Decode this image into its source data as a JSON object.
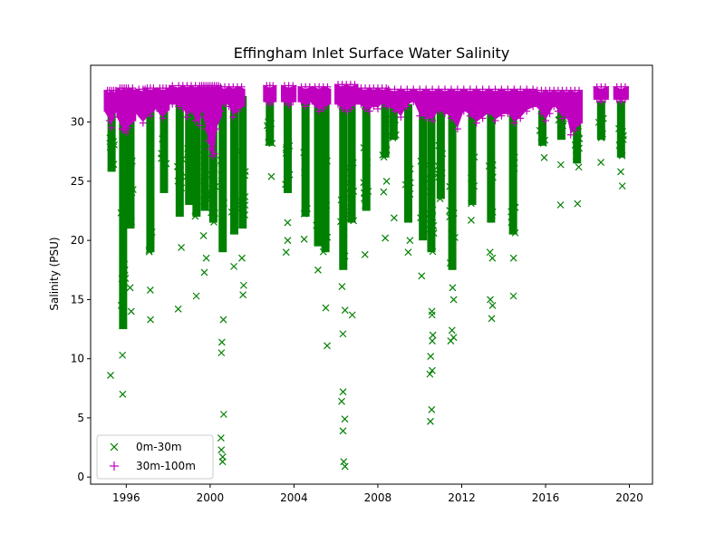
{
  "chart_data": {
    "type": "scatter",
    "title": "Effingham Inlet Surface Water Salinity",
    "xlabel": "",
    "ylabel": "Salinity (PSU)",
    "xlim": [
      1994.3,
      2021.1
    ],
    "ylim": [
      -0.6,
      34.8
    ],
    "x_ticks": [
      1996,
      2000,
      2004,
      2008,
      2012,
      2016,
      2020
    ],
    "x_tick_labels": [
      "1996",
      "2000",
      "2004",
      "2008",
      "2012",
      "2016",
      "2020"
    ],
    "y_ticks": [
      0,
      5,
      10,
      15,
      20,
      25,
      30
    ],
    "y_tick_labels": [
      "0",
      "5",
      "10",
      "15",
      "20",
      "25",
      "30"
    ],
    "grid": false,
    "legend_position": "lower-left",
    "series": [
      {
        "name": "0m-30m",
        "marker": "x",
        "color": "#008000",
        "cruises": [
          {
            "x": 1995.3,
            "top": 31.8,
            "bottom": 25.8,
            "outliers": [
              8.6
            ]
          },
          {
            "x": 1995.85,
            "top": 31.9,
            "bottom": 12.5,
            "outliers": [
              10.3,
              7.0
            ]
          },
          {
            "x": 1996.2,
            "top": 31.9,
            "bottom": 21.0,
            "outliers": [
              16.0,
              14.0
            ]
          },
          {
            "x": 1997.15,
            "top": 32.0,
            "bottom": 19.0,
            "outliers": [
              15.8,
              13.3
            ]
          },
          {
            "x": 1997.8,
            "top": 32.0,
            "bottom": 24.0,
            "outliers": []
          },
          {
            "x": 1998.55,
            "top": 32.2,
            "bottom": 22.0,
            "outliers": [
              19.4,
              14.2
            ]
          },
          {
            "x": 1999.0,
            "top": 32.2,
            "bottom": 23.0,
            "outliers": []
          },
          {
            "x": 1999.35,
            "top": 32.3,
            "bottom": 22.0,
            "outliers": [
              15.3
            ]
          },
          {
            "x": 1999.75,
            "top": 32.3,
            "bottom": 22.5,
            "outliers": [
              20.4,
              18.5,
              17.3
            ]
          },
          {
            "x": 2000.15,
            "top": 32.3,
            "bottom": 21.5,
            "outliers": []
          },
          {
            "x": 2000.6,
            "top": 32.2,
            "bottom": 19.0,
            "outliers": [
              13.3,
              11.4,
              10.5,
              5.3,
              3.3,
              2.3,
              1.7,
              1.3
            ]
          },
          {
            "x": 2001.15,
            "top": 32.2,
            "bottom": 20.5,
            "outliers": [
              17.8
            ]
          },
          {
            "x": 2001.55,
            "top": 32.2,
            "bottom": 21.0,
            "outliers": [
              18.5,
              16.2,
              15.4
            ]
          },
          {
            "x": 2002.85,
            "top": 31.8,
            "bottom": 28.0,
            "outliers": [
              25.4
            ]
          },
          {
            "x": 2003.7,
            "top": 32.0,
            "bottom": 24.0,
            "outliers": [
              21.5,
              20.0,
              19.0
            ]
          },
          {
            "x": 2004.55,
            "top": 32.0,
            "bottom": 22.0,
            "outliers": [
              20.1
            ]
          },
          {
            "x": 2005.15,
            "top": 32.1,
            "bottom": 19.5,
            "outliers": [
              17.5
            ]
          },
          {
            "x": 2005.5,
            "top": 32.1,
            "bottom": 19.0,
            "outliers": [
              14.3,
              11.1
            ]
          },
          {
            "x": 2006.35,
            "top": 32.2,
            "bottom": 17.5,
            "outliers": [
              16.1,
              14.1,
              12.1,
              7.2,
              6.4,
              4.9,
              3.9,
              1.3,
              0.9
            ]
          },
          {
            "x": 2006.75,
            "top": 32.2,
            "bottom": 21.5,
            "outliers": [
              13.7
            ]
          },
          {
            "x": 2007.45,
            "top": 32.2,
            "bottom": 22.5,
            "outliers": [
              18.8
            ]
          },
          {
            "x": 2008.35,
            "top": 31.8,
            "bottom": 27.0,
            "outliers": [
              25.0,
              24.1,
              20.2
            ]
          },
          {
            "x": 2008.75,
            "top": 31.5,
            "bottom": 28.5,
            "outliers": [
              21.9
            ]
          },
          {
            "x": 2009.45,
            "top": 31.5,
            "bottom": 21.5,
            "outliers": [
              20.0,
              19.0
            ]
          },
          {
            "x": 2010.15,
            "top": 31.6,
            "bottom": 20.0,
            "outliers": [
              17.0
            ]
          },
          {
            "x": 2010.55,
            "top": 31.5,
            "bottom": 19.0,
            "outliers": [
              14.0,
              13.7,
              12.0,
              11.5,
              10.2,
              9.0,
              8.7,
              5.7,
              4.7
            ]
          },
          {
            "x": 2011.0,
            "top": 31.5,
            "bottom": 23.5,
            "outliers": []
          },
          {
            "x": 2011.55,
            "top": 31.5,
            "bottom": 17.5,
            "outliers": [
              16.0,
              15.0,
              12.4,
              11.8,
              11.5
            ]
          },
          {
            "x": 2012.5,
            "top": 31.5,
            "bottom": 23.0,
            "outliers": [
              21.7
            ]
          },
          {
            "x": 2013.4,
            "top": 31.6,
            "bottom": 21.5,
            "outliers": [
              19.0,
              18.5,
              15.0,
              14.5,
              13.4
            ]
          },
          {
            "x": 2014.45,
            "top": 31.4,
            "bottom": 20.5,
            "outliers": [
              18.5,
              15.3
            ]
          },
          {
            "x": 2015.85,
            "top": 31.0,
            "bottom": 28.0,
            "outliers": [
              27.0
            ]
          },
          {
            "x": 2016.75,
            "top": 31.5,
            "bottom": 28.5,
            "outliers": [
              26.4,
              23.0
            ]
          },
          {
            "x": 2017.5,
            "top": 31.5,
            "bottom": 26.5,
            "outliers": [
              26.2,
              23.1
            ]
          },
          {
            "x": 2018.65,
            "top": 31.8,
            "bottom": 28.5,
            "outliers": [
              26.6
            ]
          },
          {
            "x": 2019.6,
            "top": 31.8,
            "bottom": 27.0,
            "outliers": [
              25.8,
              24.6
            ]
          }
        ]
      },
      {
        "name": "30m-100m",
        "marker": "+",
        "color": "#bf00bf",
        "segments": [
          {
            "x": [
              1995.1,
              1995.2,
              1995.3,
              1995.4,
              1995.5
            ],
            "top": 32.6,
            "bottom": [
              31.0,
              30.2,
              29.6,
              30.5,
              31.2
            ]
          },
          {
            "x": [
              1995.7,
              1995.8,
              1995.9,
              1996.0,
              1996.1,
              1996.3
            ],
            "top": 32.8,
            "bottom": [
              30.5,
              29.5,
              29.4,
              29.2,
              29.6,
              30.2
            ]
          },
          {
            "x": [
              1996.6,
              1996.8,
              1996.9
            ],
            "top": 32.7,
            "bottom": [
              30.8,
              30.0,
              30.6
            ]
          },
          {
            "x": [
              1997.0,
              1997.15,
              1997.3
            ],
            "top": 32.8,
            "bottom": [
              31.0,
              30.6,
              31.2
            ]
          },
          {
            "x": [
              1997.6,
              1997.75,
              1997.9
            ],
            "top": 32.8,
            "bottom": [
              31.0,
              30.4,
              31.1
            ]
          },
          {
            "x": [
              1998.2,
              1998.5,
              1998.7,
              1998.9,
              1999.1,
              1999.3,
              1999.5,
              1999.6,
              1999.7,
              1999.8,
              1999.9,
              2000.0,
              2000.1,
              2000.2,
              2000.3,
              2000.4
            ],
            "top": 33.0,
            "bottom": [
              31.6,
              31.4,
              31.2,
              30.5,
              31.0,
              30.2,
              29.8,
              31.2,
              30.5,
              29.5,
              28.5,
              27.8,
              27.2,
              27.4,
              29.5,
              30.5
            ]
          },
          {
            "x": [
              2000.5,
              2000.7,
              2000.9,
              2001.1,
              2001.3,
              2001.5
            ],
            "top": 32.9,
            "bottom": [
              31.0,
              31.6,
              31.4,
              30.5,
              31.0,
              31.4
            ]
          },
          {
            "x": [
              2002.7,
              2002.85,
              2003.0
            ],
            "top": 33.0,
            "bottom": [
              31.8,
              31.6,
              31.8
            ]
          },
          {
            "x": [
              2003.55,
              2003.75,
              2003.95
            ],
            "top": 33.0,
            "bottom": [
              31.8,
              31.5,
              31.8
            ]
          },
          {
            "x": [
              2004.35,
              2004.55,
              2004.75
            ],
            "top": 32.9,
            "bottom": [
              31.8,
              31.4,
              31.8
            ]
          },
          {
            "x": [
              2005.0,
              2005.2,
              2005.4,
              2005.6
            ],
            "top": 32.9,
            "bottom": [
              31.6,
              31.0,
              31.2,
              31.6
            ]
          },
          {
            "x": [
              2006.1,
              2006.3,
              2006.5,
              2006.7,
              2006.9
            ],
            "top": 33.1,
            "bottom": [
              31.6,
              31.2,
              31.0,
              31.2,
              31.6
            ]
          },
          {
            "x": [
              2007.2,
              2007.4,
              2007.6,
              2007.8,
              2008.0,
              2008.2,
              2008.4
            ],
            "top": 32.8,
            "bottom": [
              31.6,
              31.2,
              31.0,
              31.4,
              31.2,
              31.6,
              31.4
            ]
          },
          {
            "x": [
              2008.5,
              2008.8,
              2009.1,
              2009.4,
              2009.7,
              2010.0,
              2010.3,
              2010.6,
              2010.9,
              2011.2,
              2011.5,
              2011.8,
              2012.1,
              2012.4,
              2012.7,
              2013.0,
              2013.3,
              2013.6,
              2013.9,
              2014.2,
              2014.5,
              2014.8,
              2015.1,
              2015.4
            ],
            "top": 32.7,
            "bottom": [
              31.5,
              31.0,
              30.5,
              31.4,
              31.8,
              30.6,
              30.4,
              30.2,
              31.0,
              30.8,
              30.4,
              29.5,
              31.0,
              30.6,
              30.0,
              30.4,
              30.8,
              30.2,
              30.6,
              30.8,
              30.0,
              30.4,
              31.0,
              31.4
            ]
          },
          {
            "x": [
              2015.6,
              2015.8,
              2016.0,
              2016.2,
              2016.4,
              2016.6,
              2016.8,
              2017.0,
              2017.2,
              2017.4,
              2017.6
            ],
            "top": 32.6,
            "bottom": [
              31.6,
              30.8,
              30.2,
              30.8,
              31.4,
              31.0,
              30.4,
              30.6,
              29.0,
              29.4,
              30.0
            ]
          },
          {
            "x": [
              2018.45,
              2018.65,
              2018.85
            ],
            "top": 32.9,
            "bottom": [
              32.0,
              31.8,
              32.0
            ]
          },
          {
            "x": [
              2019.4,
              2019.6,
              2019.8
            ],
            "top": 32.9,
            "bottom": [
              32.0,
              31.8,
              32.0
            ]
          }
        ]
      }
    ]
  }
}
